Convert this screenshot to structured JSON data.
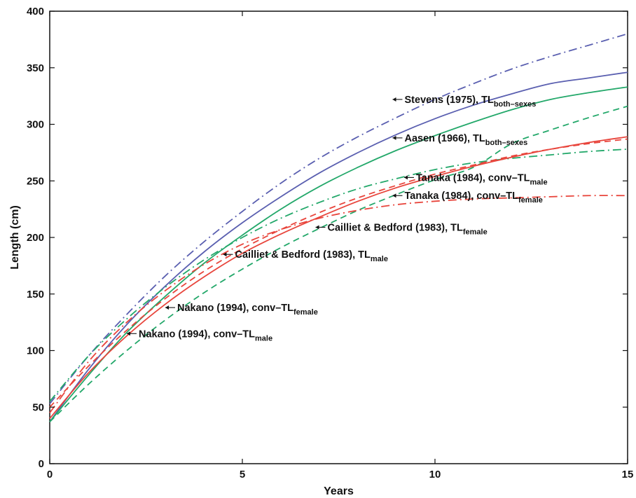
{
  "chart_data": {
    "type": "line",
    "xlabel": "Years",
    "ylabel": "Length (cm)",
    "xlim": [
      0,
      15
    ],
    "ylim": [
      0,
      400
    ],
    "xticks": [
      0,
      5,
      10,
      15
    ],
    "yticks": [
      0,
      50,
      100,
      150,
      200,
      250,
      300,
      350,
      400
    ],
    "grid": false,
    "legend": "none",
    "series": [
      {
        "id": "stevens",
        "color": "#5a5fb0",
        "dash": "dashdot",
        "x": [
          0,
          1,
          2,
          3,
          4,
          5,
          6,
          7,
          8,
          9,
          10,
          11,
          12,
          13,
          14,
          15
        ],
        "y": [
          53,
          95,
          132,
          166,
          196,
          223,
          248,
          270,
          289,
          306,
          322,
          336,
          349,
          360,
          370,
          380
        ]
      },
      {
        "id": "aasen",
        "color": "#5a5fb0",
        "dash": "solid",
        "x": [
          0,
          1,
          2,
          3,
          4,
          5,
          6,
          7,
          8,
          9,
          10,
          11,
          12,
          13,
          14,
          15
        ],
        "y": [
          37,
          83,
          123,
          157,
          187,
          213,
          236,
          257,
          275,
          291,
          305,
          317,
          327,
          336,
          341,
          346
        ]
      },
      {
        "id": "green-solid",
        "color": "#23a86a",
        "dash": "solid",
        "x": [
          0,
          1,
          2,
          3,
          4,
          5,
          6,
          7,
          8,
          9,
          10,
          11,
          12,
          13,
          14,
          15
        ],
        "y": [
          37,
          78,
          116,
          148,
          177,
          202,
          225,
          245,
          262,
          277,
          290,
          302,
          313,
          322,
          328,
          333
        ]
      },
      {
        "id": "green-dashed",
        "color": "#23a86a",
        "dash": "dashed",
        "x": [
          0,
          1,
          2,
          3,
          4,
          5,
          6,
          7,
          8,
          9,
          10,
          11,
          12,
          13,
          14,
          15
        ],
        "y": [
          37,
          70,
          100,
          127,
          151,
          172,
          191,
          208,
          224,
          238,
          251,
          262,
          283,
          295,
          306,
          316
        ]
      },
      {
        "id": "green-dashdot",
        "color": "#23a86a",
        "dash": "dashdot",
        "x": [
          0,
          1,
          2,
          3,
          4,
          5,
          6,
          7,
          8,
          9,
          10,
          11,
          12,
          13,
          14,
          15
        ],
        "y": [
          55,
          95,
          128,
          156,
          180,
          200,
          217,
          231,
          243,
          252,
          260,
          266,
          270,
          273,
          276,
          278
        ]
      },
      {
        "id": "red-solid",
        "color": "#e8453c",
        "dash": "solid",
        "x": [
          0,
          1,
          2,
          3,
          4,
          5,
          6,
          7,
          8,
          9,
          10,
          11,
          12,
          13,
          14,
          15
        ],
        "y": [
          40,
          80,
          113,
          141,
          165,
          186,
          203,
          218,
          232,
          244,
          254,
          263,
          271,
          278,
          284,
          289
        ]
      },
      {
        "id": "red-dashed",
        "color": "#e8453c",
        "dash": "dashed",
        "x": [
          0,
          1,
          2,
          3,
          4,
          5,
          6,
          7,
          8,
          9,
          10,
          11,
          12,
          13,
          14,
          15
        ],
        "y": [
          50,
          86,
          118,
          146,
          170,
          190,
          207,
          222,
          235,
          246,
          256,
          264,
          272,
          278,
          283,
          287
        ]
      },
      {
        "id": "red-dashdot",
        "color": "#e8453c",
        "dash": "dashdot",
        "x": [
          0,
          1,
          2,
          3,
          4,
          5,
          6,
          7,
          8,
          9,
          10,
          11,
          12,
          13,
          14,
          15
        ],
        "y": [
          45,
          90,
          125,
          153,
          176,
          194,
          207,
          217,
          224,
          229,
          232,
          234,
          235,
          236,
          237,
          237
        ]
      }
    ],
    "annotations": [
      {
        "id": "ann-stevens",
        "x": 8.9,
        "y": 322,
        "main": "Stevens (1975), TL",
        "sub": "both–sexes"
      },
      {
        "id": "ann-aasen",
        "x": 8.9,
        "y": 288,
        "main": "Aasen (1966), TL",
        "sub": "both–sexes"
      },
      {
        "id": "ann-tanaka-male",
        "x": 9.2,
        "y": 253,
        "main": "Tanaka (1984), conv–TL",
        "sub": "male"
      },
      {
        "id": "ann-tanaka-female",
        "x": 8.9,
        "y": 237,
        "main": "Tanaka (1984), conv–TL",
        "sub": "female"
      },
      {
        "id": "ann-cailliet-female",
        "x": 6.9,
        "y": 209,
        "main": "Cailliet & Bedford (1983), TL",
        "sub": "female"
      },
      {
        "id": "ann-cailliet-male",
        "x": 4.5,
        "y": 185,
        "main": "Cailliet & Bedford (1983), TL",
        "sub": "male"
      },
      {
        "id": "ann-nakano-female",
        "x": 3.0,
        "y": 138,
        "main": "Nakano (1994), conv–TL",
        "sub": "female"
      },
      {
        "id": "ann-nakano-male",
        "x": 2.0,
        "y": 115,
        "main": "Nakano (1994), conv–TL",
        "sub": "male"
      }
    ]
  }
}
